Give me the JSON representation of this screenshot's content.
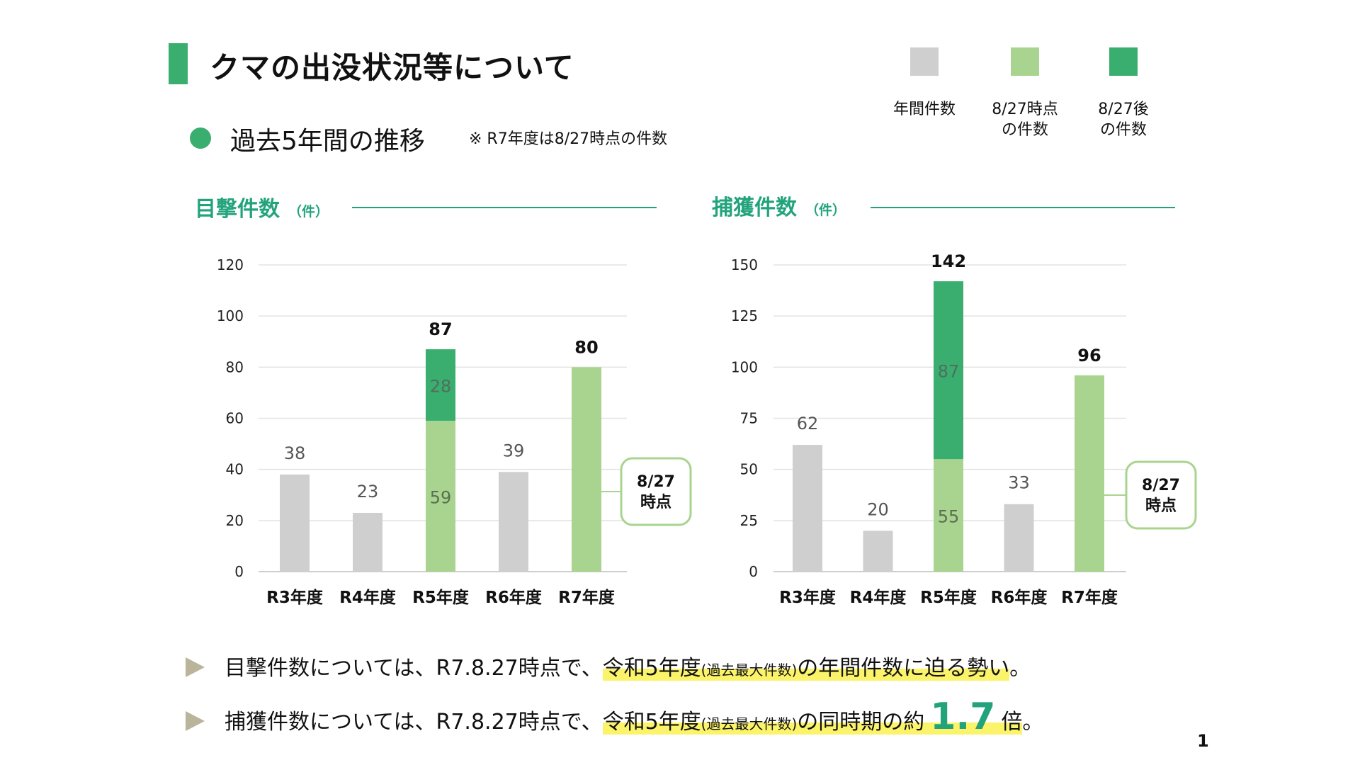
{
  "header": {
    "title": "クマの出没状況等について",
    "subtitle": "過去5年間の推移",
    "note": "※ R7年度は8/27時点の件数"
  },
  "legend": [
    {
      "label_lines": [
        "年間件数"
      ],
      "color": "#d0cfcf"
    },
    {
      "label_lines": [
        "8/27時点",
        "の件数"
      ],
      "color": "#a9d48f"
    },
    {
      "label_lines": [
        "8/27後",
        "の件数"
      ],
      "color": "#3aae6e"
    }
  ],
  "colors": {
    "annual": "#d0cfcf",
    "by_0827": "#a9d48f",
    "after_0827": "#3aae6e",
    "accent": "#22a37c"
  },
  "chart_data": [
    {
      "type": "bar",
      "stacked": true,
      "title": "目撃件数",
      "unit": "（件）",
      "categories": [
        "R3年度",
        "R4年度",
        "R5年度",
        "R6年度",
        "R7年度"
      ],
      "ylim": [
        0,
        120
      ],
      "yticks": [
        0,
        20,
        40,
        60,
        80,
        100,
        120
      ],
      "grid": true,
      "annual": [
        38,
        23,
        null,
        39,
        null
      ],
      "by_0827": [
        null,
        null,
        59,
        null,
        80
      ],
      "after_0827": [
        null,
        null,
        28,
        null,
        null
      ],
      "totals": [
        null,
        null,
        87,
        null,
        80
      ],
      "callout_lines": [
        "8/27",
        "時点"
      ]
    },
    {
      "type": "bar",
      "stacked": true,
      "title": "捕獲件数",
      "unit": "（件）",
      "categories": [
        "R3年度",
        "R4年度",
        "R5年度",
        "R6年度",
        "R7年度"
      ],
      "ylim": [
        0,
        150
      ],
      "yticks": [
        0,
        25,
        50,
        75,
        100,
        125,
        150
      ],
      "grid": true,
      "annual": [
        62,
        20,
        null,
        33,
        null
      ],
      "by_0827": [
        null,
        null,
        55,
        null,
        96
      ],
      "after_0827": [
        null,
        null,
        87,
        null,
        null
      ],
      "totals": [
        null,
        null,
        142,
        null,
        96
      ],
      "callout_lines": [
        "8/27",
        "時点"
      ]
    }
  ],
  "points": [
    {
      "pre": "目撃件数については、R7.8.27時点で、",
      "hl_main": "令和5年度",
      "hl_small": "(過去最大件数)",
      "post1": "の年間件数に迫る勢い",
      "tail": "。"
    },
    {
      "pre": "捕獲件数については、R7.8.27時点で、",
      "hl_main": "令和5年度",
      "hl_small": "(過去最大件数)",
      "post1": "の同時期の約",
      "emph": "1.7",
      "post2": "倍",
      "tail": "。"
    }
  ],
  "page_number": "1"
}
